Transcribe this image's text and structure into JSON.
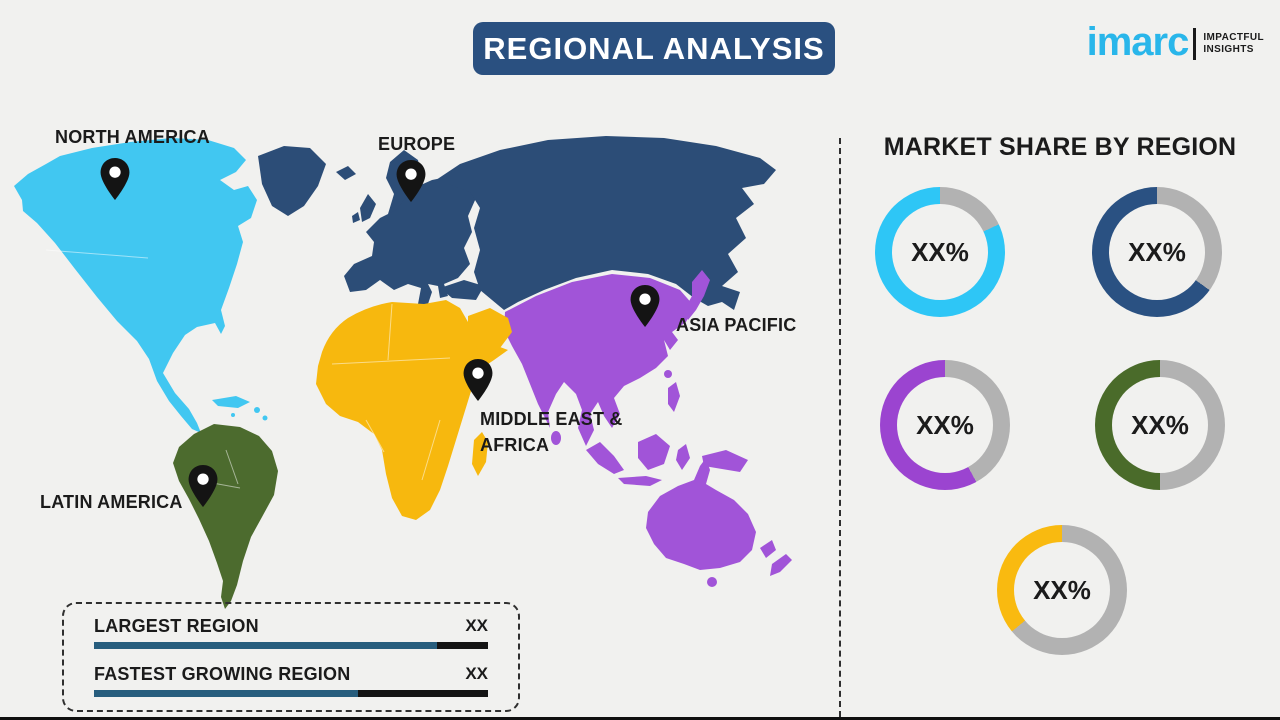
{
  "header": {
    "title": "REGIONAL ANALYSIS",
    "banner_color": "#2a5080"
  },
  "logo": {
    "brand": "imarc",
    "tagline_line1": "IMPACTFUL",
    "tagline_line2": "INSIGHTS",
    "brand_color": "#29b6ea"
  },
  "map": {
    "pin_color": "#141414",
    "regions": {
      "north_america": {
        "label": "NORTH AMERICA",
        "color": "#41c7f1"
      },
      "europe": {
        "label": "EUROPE",
        "color": "#2c4d77"
      },
      "asia_pacific": {
        "label": "ASIA PACIFIC",
        "color": "#a154d8"
      },
      "middle_east_africa": {
        "label_line1": "MIDDLE EAST &",
        "label_line2": "AFRICA",
        "color": "#f7b80e"
      },
      "latin_america": {
        "label": "LATIN AMERICA",
        "color": "#4c6b2e"
      }
    }
  },
  "legend": {
    "bar_fill_color": "#275d7d",
    "bar_rest_color": "#141414",
    "rows": [
      {
        "label": "LARGEST REGION",
        "value": "XX",
        "fill_pct": 87
      },
      {
        "label": "FASTEST GROWING REGION",
        "value": "XX",
        "fill_pct": 67
      }
    ]
  },
  "market_share": {
    "heading": "MARKET SHARE BY REGION",
    "track_color": "#b2b2b2",
    "donuts": [
      {
        "value_label": "XX%",
        "color": "#2ec6f6",
        "value_pct": 82
      },
      {
        "value_label": "XX%",
        "color": "#2a5182",
        "value_pct": 65
      },
      {
        "value_label": "XX%",
        "color": "#9b44d0",
        "value_pct": 58
      },
      {
        "value_label": "XX%",
        "color": "#4a6b2a",
        "value_pct": 50
      },
      {
        "value_label": "XX%",
        "color": "#f9ba10",
        "value_pct": 36
      }
    ]
  },
  "chart_data": {
    "type": "pie",
    "title": "MARKET SHARE BY REGION",
    "series": [
      {
        "name": "cyan-donut",
        "label": "XX%",
        "filled_pct": 82,
        "remainder_pct": 18
      },
      {
        "name": "dark-blue-donut",
        "label": "XX%",
        "filled_pct": 65,
        "remainder_pct": 35
      },
      {
        "name": "purple-donut",
        "label": "XX%",
        "filled_pct": 58,
        "remainder_pct": 42
      },
      {
        "name": "green-donut",
        "label": "XX%",
        "filled_pct": 50,
        "remainder_pct": 50
      },
      {
        "name": "yellow-donut",
        "label": "XX%",
        "filled_pct": 36,
        "remainder_pct": 64
      }
    ]
  }
}
